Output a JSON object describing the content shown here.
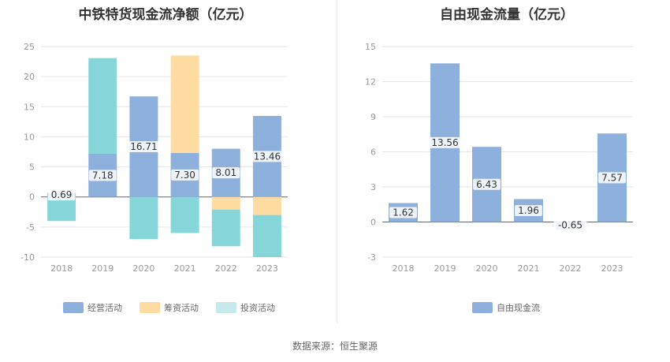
{
  "source": "数据来源：恒生聚源",
  "colors": {
    "operating": "#8eb0dc",
    "financing": "#fedba0",
    "investing": "#86d5d8",
    "fcf": "#8eb0dc"
  },
  "chart_data": [
    {
      "type": "bar",
      "stacked": true,
      "title": "中铁特货现金流净额（亿元）",
      "categories": [
        "2018",
        "2019",
        "2020",
        "2021",
        "2022",
        "2023"
      ],
      "ylim": [
        -10,
        25
      ],
      "yticks": [
        "25",
        "20",
        "15",
        "10",
        "5",
        "0",
        "-5",
        "-10"
      ],
      "series": [
        {
          "name": "经营活动",
          "values": [
            0.69,
            7.18,
            16.71,
            7.3,
            8.01,
            13.46
          ],
          "labels": [
            "0.69",
            "7.18",
            "16.71",
            "7.30",
            "8.01",
            "13.46"
          ]
        },
        {
          "name": "筹资活动",
          "values": [
            0,
            0,
            0,
            16.2,
            -2.1,
            -3.0
          ]
        },
        {
          "name": "投资活动",
          "values": [
            -4.0,
            15.9,
            -7.0,
            -6.0,
            -6.1,
            -7.0
          ]
        }
      ]
    },
    {
      "type": "bar",
      "title": "自由现金流量（亿元）",
      "categories": [
        "2018",
        "2019",
        "2020",
        "2021",
        "2022",
        "2023"
      ],
      "ylim": [
        -3,
        15
      ],
      "yticks": [
        "15",
        "12",
        "9",
        "6",
        "3",
        "0",
        "-3"
      ],
      "series": [
        {
          "name": "自由现金流",
          "values": [
            1.62,
            13.56,
            6.43,
            1.96,
            -0.65,
            7.57
          ],
          "labels": [
            "1.62",
            "13.56",
            "6.43",
            "1.96",
            "-0.65",
            "7.57"
          ]
        }
      ]
    }
  ]
}
